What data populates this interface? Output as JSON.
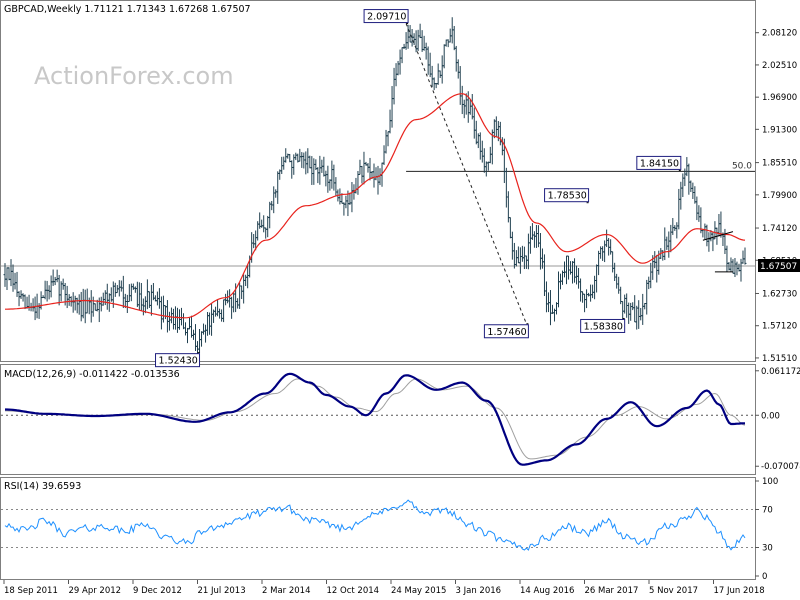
{
  "chart_data": [
    {
      "type": "line",
      "title": "GBPCAD,Weekly  1.71121 1.71343 1.67268 1.67507",
      "subtype": "ohlc-bars",
      "watermark": "ActionForex.com",
      "ylim": [
        1.515,
        2.112
      ],
      "y_ticks": [
        "2.08120",
        "2.02510",
        "1.96900",
        "1.91300",
        "1.85510",
        "1.79900",
        "1.74120",
        "1.68510",
        "1.62730",
        "1.57120",
        "1.51510"
      ],
      "x_tick_labels": [
        "18 Sep 2011",
        "29 Apr 2012",
        "9 Dec 2012",
        "21 Jul 2013",
        "2 Mar 2014",
        "12 Oct 2014",
        "24 May 2015",
        "3 Jan 2016",
        "14 Aug 2016",
        "26 Mar 2017",
        "5 Nov 2017",
        "17 Jun 2018"
      ],
      "last_price": "1.67507",
      "bars_count": 370,
      "close_anchors": [
        [
          0,
          1.66
        ],
        [
          12,
          1.6
        ],
        [
          25,
          1.64
        ],
        [
          40,
          1.6
        ],
        [
          55,
          1.63
        ],
        [
          70,
          1.62
        ],
        [
          85,
          1.58
        ],
        [
          96,
          1.545
        ],
        [
          102,
          1.58
        ],
        [
          115,
          1.62
        ],
        [
          128,
          1.74
        ],
        [
          140,
          1.86
        ],
        [
          150,
          1.85
        ],
        [
          162,
          1.83
        ],
        [
          170,
          1.78
        ],
        [
          178,
          1.84
        ],
        [
          185,
          1.83
        ],
        [
          200,
          2.07
        ],
        [
          208,
          2.06
        ],
        [
          215,
          2.0
        ],
        [
          222,
          2.08
        ],
        [
          228,
          1.97
        ],
        [
          240,
          1.86
        ],
        [
          245,
          1.92
        ],
        [
          255,
          1.68
        ],
        [
          265,
          1.72
        ],
        [
          272,
          1.6
        ],
        [
          280,
          1.68
        ],
        [
          290,
          1.62
        ],
        [
          300,
          1.72
        ],
        [
          308,
          1.61
        ],
        [
          315,
          1.59
        ],
        [
          325,
          1.68
        ],
        [
          333,
          1.74
        ],
        [
          340,
          1.84
        ],
        [
          348,
          1.73
        ],
        [
          356,
          1.74
        ],
        [
          362,
          1.67
        ],
        [
          369,
          1.675
        ]
      ],
      "sma_anchors": [
        [
          0,
          1.6
        ],
        [
          40,
          1.615
        ],
        [
          90,
          1.585
        ],
        [
          110,
          1.62
        ],
        [
          130,
          1.72
        ],
        [
          150,
          1.78
        ],
        [
          170,
          1.8
        ],
        [
          185,
          1.83
        ],
        [
          205,
          1.93
        ],
        [
          228,
          1.975
        ],
        [
          245,
          1.9
        ],
        [
          265,
          1.75
        ],
        [
          280,
          1.7
        ],
        [
          300,
          1.73
        ],
        [
          318,
          1.68
        ],
        [
          330,
          1.7
        ],
        [
          345,
          1.74
        ],
        [
          360,
          1.73
        ],
        [
          369,
          1.72
        ]
      ],
      "levels": [
        {
          "label": "1.52430",
          "kind": "low",
          "bar": 96,
          "value": 1.5243
        },
        {
          "label": "2.09710",
          "kind": "high",
          "bar": 200,
          "value": 2.0971
        },
        {
          "label": "1.57460",
          "kind": "low",
          "bar": 260,
          "value": 1.5746
        },
        {
          "label": "1.78530",
          "kind": "high",
          "bar": 290,
          "value": 1.7853
        },
        {
          "label": "1.58380",
          "kind": "low",
          "bar": 308,
          "value": 1.5838
        },
        {
          "label": "1.84150",
          "kind": "high",
          "bar": 336,
          "value": 1.8415
        }
      ],
      "fib_level": {
        "label": "50.0",
        "value": 1.8415,
        "bar_start": 200
      },
      "trendline": {
        "from": [
          200,
          2.0971
        ],
        "to": [
          260,
          1.5746
        ]
      },
      "current_price_line": 1.67507,
      "triangle": {
        "upper": [
          [
            348,
            1.72
          ],
          [
            363,
            1.735
          ]
        ],
        "lower": [
          [
            354,
            1.665
          ],
          [
            363,
            1.665
          ]
        ]
      }
    },
    {
      "type": "line",
      "title": "MACD(12,26,9) -0.011422 -0.013536",
      "ylim": [
        -0.078,
        0.065
      ],
      "y_ticks": [
        {
          "label": "0.061172",
          "value": 0.061172
        },
        {
          "label": "0.00",
          "value": 0
        },
        {
          "label": "-0.070078",
          "value": -0.070078
        }
      ],
      "series": [
        {
          "values_anchors": [
            [
              0,
              0.008
            ],
            [
              20,
              0.002
            ],
            [
              45,
              -0.001
            ],
            [
              70,
              0.002
            ],
            [
              95,
              -0.009
            ],
            [
              112,
              0.004
            ],
            [
              130,
              0.03
            ],
            [
              142,
              0.057
            ],
            [
              152,
              0.045
            ],
            [
              160,
              0.028
            ],
            [
              172,
              0.012
            ],
            [
              180,
              0.0
            ],
            [
              190,
              0.03
            ],
            [
              200,
              0.055
            ],
            [
              215,
              0.035
            ],
            [
              228,
              0.045
            ],
            [
              240,
              0.02
            ],
            [
              258,
              -0.068
            ],
            [
              270,
              -0.062
            ],
            [
              285,
              -0.04
            ],
            [
              300,
              -0.005
            ],
            [
              312,
              0.018
            ],
            [
              325,
              -0.015
            ],
            [
              340,
              0.01
            ],
            [
              350,
              0.034
            ],
            [
              356,
              0.015
            ],
            [
              362,
              -0.012
            ],
            [
              369,
              -0.011
            ]
          ]
        },
        {
          "values_anchors": [
            [
              0,
              0.006
            ],
            [
              25,
              0.001
            ],
            [
              50,
              -0.001
            ],
            [
              75,
              0.001
            ],
            [
              100,
              -0.007
            ],
            [
              115,
              0.005
            ],
            [
              135,
              0.03
            ],
            [
              146,
              0.05
            ],
            [
              156,
              0.04
            ],
            [
              165,
              0.025
            ],
            [
              175,
              0.01
            ],
            [
              185,
              0.005
            ],
            [
              195,
              0.03
            ],
            [
              205,
              0.05
            ],
            [
              218,
              0.035
            ],
            [
              230,
              0.04
            ],
            [
              245,
              0.01
            ],
            [
              262,
              -0.06
            ],
            [
              275,
              -0.055
            ],
            [
              290,
              -0.03
            ],
            [
              305,
              0.0
            ],
            [
              316,
              0.012
            ],
            [
              330,
              -0.005
            ],
            [
              345,
              0.015
            ],
            [
              354,
              0.03
            ],
            [
              362,
              0.0
            ],
            [
              369,
              -0.0135
            ]
          ]
        }
      ]
    },
    {
      "type": "line",
      "title": "RSI(14) 39.6593",
      "ylim": [
        0,
        100
      ],
      "y_ticks": [
        "100",
        "70",
        "30",
        "0"
      ],
      "levels": [
        70,
        30
      ],
      "values_anchors": [
        [
          0,
          55
        ],
        [
          10,
          48
        ],
        [
          20,
          58
        ],
        [
          30,
          45
        ],
        [
          40,
          50
        ],
        [
          50,
          52
        ],
        [
          60,
          47
        ],
        [
          70,
          55
        ],
        [
          80,
          40
        ],
        [
          90,
          35
        ],
        [
          100,
          48
        ],
        [
          110,
          55
        ],
        [
          120,
          62
        ],
        [
          130,
          68
        ],
        [
          140,
          72
        ],
        [
          150,
          60
        ],
        [
          160,
          55
        ],
        [
          170,
          50
        ],
        [
          180,
          62
        ],
        [
          190,
          68
        ],
        [
          200,
          78
        ],
        [
          210,
          65
        ],
        [
          220,
          70
        ],
        [
          230,
          55
        ],
        [
          240,
          45
        ],
        [
          250,
          35
        ],
        [
          260,
          30
        ],
        [
          270,
          40
        ],
        [
          280,
          52
        ],
        [
          290,
          45
        ],
        [
          300,
          58
        ],
        [
          310,
          40
        ],
        [
          320,
          35
        ],
        [
          330,
          52
        ],
        [
          340,
          60
        ],
        [
          345,
          72
        ],
        [
          350,
          62
        ],
        [
          356,
          45
        ],
        [
          362,
          30
        ],
        [
          369,
          39.66
        ]
      ]
    }
  ]
}
